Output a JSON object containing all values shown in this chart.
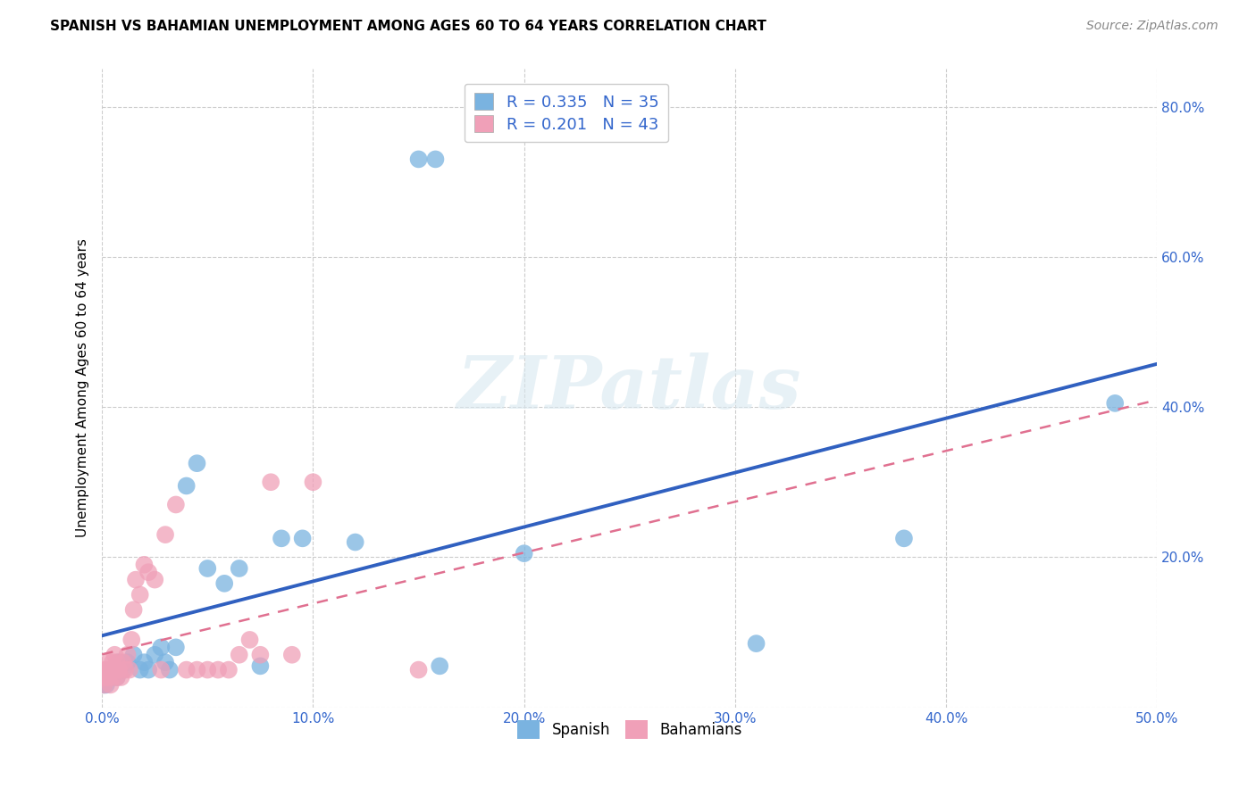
{
  "title": "SPANISH VS BAHAMIAN UNEMPLOYMENT AMONG AGES 60 TO 64 YEARS CORRELATION CHART",
  "source": "Source: ZipAtlas.com",
  "ylabel": "Unemployment Among Ages 60 to 64 years",
  "xlim": [
    0.0,
    0.5
  ],
  "ylim": [
    0.0,
    0.85
  ],
  "xticks": [
    0.0,
    0.1,
    0.2,
    0.3,
    0.4,
    0.5
  ],
  "yticks": [
    0.0,
    0.2,
    0.4,
    0.6,
    0.8
  ],
  "xtick_labels": [
    "0.0%",
    "10.0%",
    "20.0%",
    "30.0%",
    "40.0%",
    "50.0%"
  ],
  "ytick_labels_right": [
    "",
    "20.0%",
    "40.0%",
    "60.0%",
    "80.0%"
  ],
  "legend_entries": [
    {
      "label": "R = 0.335   N = 35",
      "color": "#a8c8f0"
    },
    {
      "label": "R = 0.201   N = 43",
      "color": "#f0a8c0"
    }
  ],
  "legend_labels_bottom": [
    "Spanish",
    "Bahamians"
  ],
  "spanish_color": "#7ab3e0",
  "bahamian_color": "#f0a0b8",
  "spanish_line_color": "#3060c0",
  "bahamian_line_color": "#e07090",
  "grid_color": "#cccccc",
  "bg_color": "#ffffff",
  "watermark": "ZIPatlas",
  "title_fontsize": 11,
  "axis_label_fontsize": 11,
  "tick_fontsize": 11,
  "source_fontsize": 10,
  "spanish_x": [
    0.001,
    0.002,
    0.003,
    0.004,
    0.005,
    0.006,
    0.007,
    0.008,
    0.01,
    0.012,
    0.015,
    0.018,
    0.02,
    0.022,
    0.025,
    0.028,
    0.03,
    0.032,
    0.035,
    0.04,
    0.045,
    0.05,
    0.058,
    0.065,
    0.075,
    0.085,
    0.095,
    0.12,
    0.15,
    0.158,
    0.16,
    0.2,
    0.31,
    0.38,
    0.48
  ],
  "spanish_y": [
    0.03,
    0.03,
    0.04,
    0.05,
    0.04,
    0.05,
    0.04,
    0.06,
    0.05,
    0.06,
    0.07,
    0.05,
    0.06,
    0.05,
    0.07,
    0.08,
    0.06,
    0.05,
    0.08,
    0.295,
    0.325,
    0.185,
    0.165,
    0.185,
    0.055,
    0.225,
    0.225,
    0.22,
    0.73,
    0.73,
    0.055,
    0.205,
    0.085,
    0.225,
    0.405
  ],
  "bahamian_x": [
    0.0,
    0.001,
    0.001,
    0.002,
    0.002,
    0.003,
    0.003,
    0.004,
    0.004,
    0.005,
    0.005,
    0.006,
    0.006,
    0.007,
    0.007,
    0.008,
    0.009,
    0.01,
    0.011,
    0.012,
    0.013,
    0.014,
    0.015,
    0.016,
    0.018,
    0.02,
    0.022,
    0.025,
    0.028,
    0.03,
    0.035,
    0.04,
    0.045,
    0.05,
    0.055,
    0.06,
    0.065,
    0.07,
    0.075,
    0.08,
    0.09,
    0.1,
    0.15
  ],
  "bahamian_y": [
    0.05,
    0.04,
    0.03,
    0.05,
    0.04,
    0.06,
    0.04,
    0.05,
    0.03,
    0.06,
    0.04,
    0.07,
    0.05,
    0.06,
    0.04,
    0.05,
    0.04,
    0.06,
    0.05,
    0.07,
    0.05,
    0.09,
    0.13,
    0.17,
    0.15,
    0.19,
    0.18,
    0.17,
    0.05,
    0.23,
    0.27,
    0.05,
    0.05,
    0.05,
    0.05,
    0.05,
    0.07,
    0.09,
    0.07,
    0.3,
    0.07,
    0.3,
    0.05
  ]
}
